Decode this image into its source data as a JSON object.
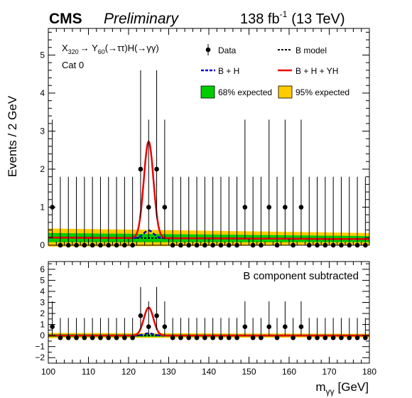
{
  "header": {
    "experiment": "CMS",
    "status": "Preliminary",
    "lumi_value": "138 fb",
    "lumi_exponent": "-1",
    "lumi_energy": "(13 TeV)"
  },
  "annotation": {
    "process_text": "X",
    "process_sub1": "320",
    "process_arrow1": "→ Y",
    "process_sub2": "60",
    "process_rest": "(→ττ)H(→γγ)",
    "category": "Cat 0",
    "subtracted_label": "B component subtracted"
  },
  "legend": {
    "data": "Data",
    "b_model": "B model",
    "b_plus_h": "B + H",
    "b_plus_h_plus_yh": "B + H + YH",
    "band68": "68% expected",
    "band95": "95% expected"
  },
  "colors": {
    "data": "#000000",
    "b_model": "#000000",
    "b_plus_h": "#0000cc",
    "signal": "#ee0000",
    "band68": "#00cc00",
    "band95": "#ffcc00"
  },
  "chart_data": [
    {
      "type": "scatter",
      "panel": "main",
      "xlabel": "",
      "ylabel": "Events / 2 GeV",
      "xlim": [
        100,
        180
      ],
      "ylim": [
        0,
        5.7
      ],
      "yticks": [
        0,
        1,
        2,
        3,
        4,
        5
      ],
      "ytick_labels": [
        "0",
        "1",
        "2",
        "3",
        "4",
        "5"
      ],
      "x": [
        101,
        103,
        105,
        107,
        109,
        111,
        113,
        115,
        117,
        119,
        121,
        123,
        125,
        127,
        129,
        131,
        133,
        135,
        137,
        139,
        141,
        143,
        145,
        147,
        149,
        151,
        153,
        155,
        157,
        159,
        161,
        163,
        165,
        167,
        169,
        171,
        173,
        175,
        177,
        179
      ],
      "data": [
        1,
        0,
        0,
        0,
        0,
        0,
        0,
        0,
        0,
        0,
        0,
        2,
        1,
        2,
        1,
        0,
        0,
        0,
        0,
        0,
        0,
        0,
        0,
        0,
        1,
        0,
        0,
        1,
        0,
        1,
        0,
        1,
        0,
        0,
        0,
        0,
        0,
        0,
        0,
        0
      ],
      "err_up": [
        2.3,
        1.8,
        1.8,
        1.8,
        1.8,
        1.8,
        1.8,
        1.8,
        1.8,
        1.8,
        1.8,
        2.6,
        2.3,
        2.6,
        2.3,
        1.8,
        1.8,
        1.8,
        1.8,
        1.8,
        1.8,
        1.8,
        1.8,
        1.8,
        2.3,
        1.8,
        1.8,
        2.3,
        1.8,
        2.3,
        1.8,
        2.3,
        1.8,
        1.8,
        1.8,
        1.8,
        1.8,
        1.8,
        1.8,
        1.8
      ],
      "err_down": [
        0.83,
        0,
        0,
        0,
        0,
        0,
        0,
        0,
        0,
        0,
        0,
        1.29,
        0.83,
        1.29,
        0.83,
        0,
        0,
        0,
        0,
        0,
        0,
        0,
        0,
        0,
        0.83,
        0,
        0,
        0.83,
        0,
        0.83,
        0,
        0.83,
        0,
        0,
        0,
        0,
        0,
        0,
        0,
        0
      ],
      "b_model": {
        "start": 0.2,
        "end": 0.16
      },
      "band68": {
        "start": 0.12,
        "end": 0.08
      },
      "band95": {
        "start": 0.24,
        "end": 0.16
      },
      "higgs": {
        "mean": 125,
        "sigma": 1.2,
        "amplitude": 0.2
      },
      "signal": {
        "mean": 125,
        "sigma": 1.2,
        "amplitude": 2.34
      }
    },
    {
      "type": "scatter",
      "panel": "ratio",
      "xlabel": "m",
      "xlabel_sub": "γγ",
      "xlabel_unit": "[GeV]",
      "xlim": [
        100,
        180
      ],
      "ylim": [
        -2.5,
        6.7
      ],
      "xticks": [
        100,
        110,
        120,
        130,
        140,
        150,
        160,
        170,
        180
      ],
      "xtick_labels": [
        "100",
        "110",
        "120",
        "130",
        "140",
        "150",
        "160",
        "170",
        "180"
      ],
      "yticks": [
        -2,
        -1,
        0,
        1,
        2,
        3,
        4,
        5,
        6
      ],
      "ytick_labels": [
        "−2",
        "−1",
        "0",
        "1",
        "2",
        "3",
        "4",
        "5",
        "6"
      ],
      "x": [
        101,
        103,
        105,
        107,
        109,
        111,
        113,
        115,
        117,
        119,
        121,
        123,
        125,
        127,
        129,
        131,
        133,
        135,
        137,
        139,
        141,
        143,
        145,
        147,
        149,
        151,
        153,
        155,
        157,
        159,
        161,
        163,
        165,
        167,
        169,
        171,
        173,
        175,
        177,
        179
      ],
      "data": [
        0.8,
        -0.2,
        -0.2,
        -0.2,
        -0.2,
        -0.2,
        -0.2,
        -0.2,
        -0.2,
        -0.2,
        -0.2,
        1.8,
        0.8,
        1.8,
        0.8,
        -0.2,
        -0.2,
        -0.2,
        -0.2,
        -0.2,
        -0.2,
        -0.2,
        -0.2,
        -0.2,
        0.8,
        -0.2,
        -0.2,
        0.8,
        -0.2,
        0.8,
        -0.2,
        0.8,
        -0.2,
        -0.2,
        -0.2,
        -0.2,
        -0.2,
        -0.2,
        -0.2,
        -0.2
      ],
      "err_up": [
        2.3,
        1.8,
        1.8,
        1.8,
        1.8,
        1.8,
        1.8,
        1.8,
        1.8,
        1.8,
        1.8,
        2.6,
        2.3,
        2.6,
        2.3,
        1.8,
        1.8,
        1.8,
        1.8,
        1.8,
        1.8,
        1.8,
        1.8,
        1.8,
        2.3,
        1.8,
        1.8,
        2.3,
        1.8,
        2.3,
        1.8,
        2.3,
        1.8,
        1.8,
        1.8,
        1.8,
        1.8,
        1.8,
        1.8,
        1.8
      ],
      "err_down": [
        0.83,
        0,
        0,
        0,
        0,
        0,
        0,
        0,
        0,
        0,
        0,
        1.29,
        0.83,
        1.29,
        0.83,
        0,
        0,
        0,
        0,
        0,
        0,
        0,
        0,
        0,
        0.83,
        0,
        0,
        0.83,
        0,
        0.83,
        0,
        0.83,
        0,
        0,
        0,
        0,
        0,
        0,
        0,
        0
      ],
      "b_model": {
        "start": 0,
        "end": 0
      },
      "band68": {
        "start": 0.12,
        "end": 0.08
      },
      "band95": {
        "start": 0.24,
        "end": 0.16
      },
      "higgs": {
        "mean": 125,
        "sigma": 1.2,
        "amplitude": 0.2
      },
      "signal": {
        "mean": 125,
        "sigma": 1.2,
        "amplitude": 2.34
      }
    }
  ]
}
